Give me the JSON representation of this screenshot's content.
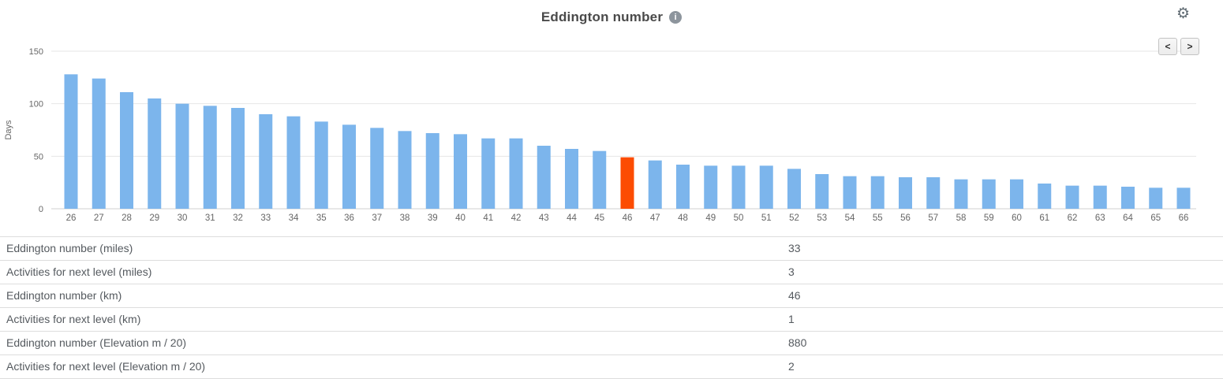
{
  "header": {
    "title": "Eddington number",
    "info_glyph": "i",
    "settings_glyph": "⚙"
  },
  "chart_nav": {
    "prev_label": "<",
    "next_label": ">"
  },
  "chart_data": {
    "type": "bar",
    "title": "Eddington number",
    "xlabel": "",
    "ylabel": "Days",
    "ylim": [
      0,
      150
    ],
    "yticks": [
      0,
      50,
      100,
      150
    ],
    "grid": true,
    "legend": false,
    "categories": [
      26,
      27,
      28,
      29,
      30,
      31,
      32,
      33,
      34,
      35,
      36,
      37,
      38,
      39,
      40,
      41,
      42,
      43,
      44,
      45,
      46,
      47,
      48,
      49,
      50,
      51,
      52,
      53,
      54,
      55,
      56,
      57,
      58,
      59,
      60,
      61,
      62,
      63,
      64,
      65,
      66
    ],
    "values": [
      128,
      124,
      111,
      105,
      100,
      98,
      96,
      90,
      88,
      83,
      80,
      77,
      74,
      72,
      71,
      67,
      67,
      60,
      57,
      55,
      49,
      46,
      42,
      41,
      41,
      41,
      38,
      33,
      31,
      31,
      30,
      30,
      28,
      28,
      28,
      24,
      22,
      22,
      21,
      20,
      20
    ],
    "highlight_category": 46,
    "colors": {
      "bar": "#7cb5ec",
      "highlight": "#fc4c02",
      "grid": "#e6e6e6",
      "axis_line": "#d0d0d0",
      "axis_text": "#666666"
    }
  },
  "table": {
    "rows": [
      {
        "label": "Eddington number (miles)",
        "value": "33"
      },
      {
        "label": "Activities for next level (miles)",
        "value": "3"
      },
      {
        "label": "Eddington number (km)",
        "value": "46"
      },
      {
        "label": "Activities for next level (km)",
        "value": "1"
      },
      {
        "label": "Eddington number (Elevation m / 20)",
        "value": "880"
      },
      {
        "label": "Activities for next level (Elevation m / 20)",
        "value": "2"
      }
    ]
  }
}
